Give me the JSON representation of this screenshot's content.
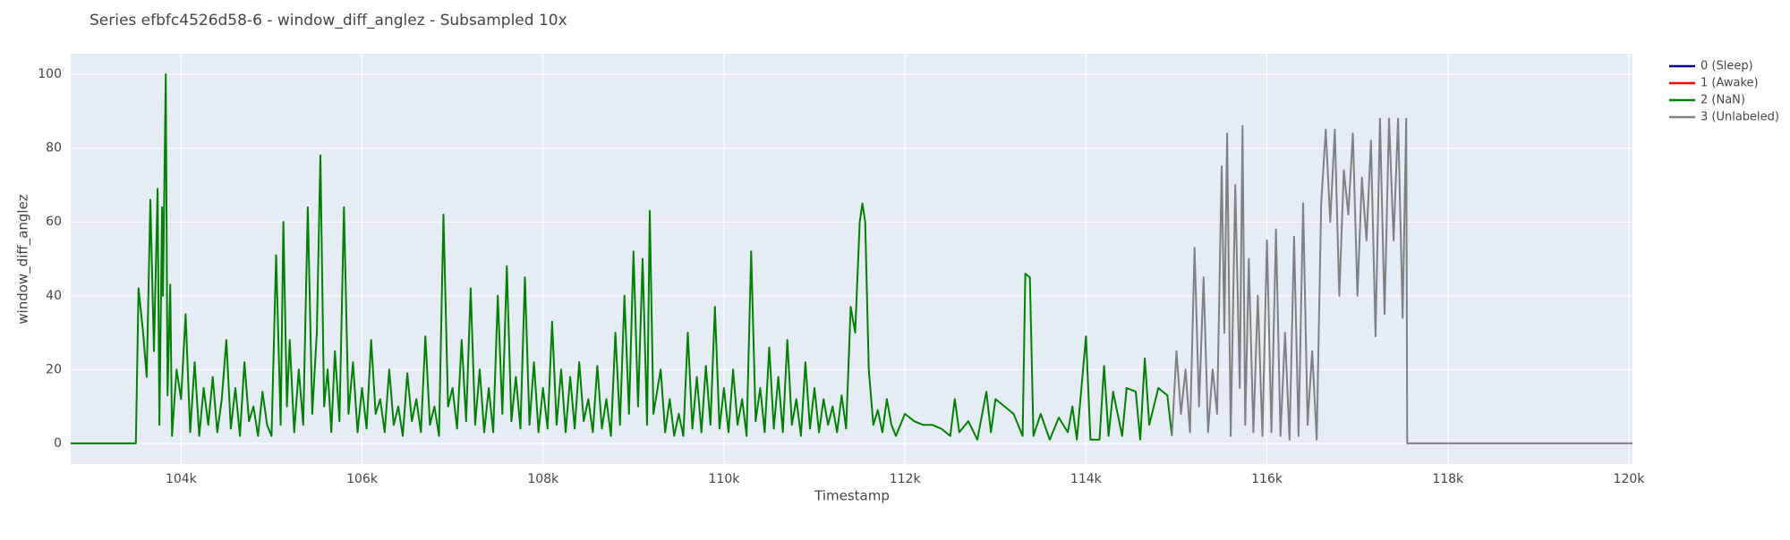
{
  "chart_data": {
    "type": "line",
    "title": "Series efbfc4526d58-6 - window_diff_anglez - Subsampled 10x",
    "x_label": "Timestamp",
    "y_label": "window_diff_anglez",
    "xlim": [
      102780,
      120040
    ],
    "xticks": [
      {
        "value": 104000,
        "label": "104k"
      },
      {
        "value": 106000,
        "label": "106k"
      },
      {
        "value": 108000,
        "label": "108k"
      },
      {
        "value": 110000,
        "label": "110k"
      },
      {
        "value": 112000,
        "label": "112k"
      },
      {
        "value": 114000,
        "label": "114k"
      },
      {
        "value": 116000,
        "label": "116k"
      },
      {
        "value": 118000,
        "label": "118k"
      },
      {
        "value": 120000,
        "label": "120k"
      }
    ],
    "ylim": [
      -5.6,
      105.6
    ],
    "yticks": [
      0,
      20,
      40,
      60,
      80,
      100
    ],
    "grid": true,
    "legend": "right",
    "series": [
      {
        "name": "0 (Sleep)",
        "color": "#00008b",
        "x": [],
        "values": []
      },
      {
        "name": "1 (Awake)",
        "color": "#ff0000",
        "x": [],
        "values": []
      },
      {
        "name": "2 (NaN)",
        "color": "#008000",
        "x": [
          102780,
          103500,
          103530,
          103580,
          103620,
          103660,
          103700,
          103740,
          103760,
          103790,
          103800,
          103830,
          103850,
          103880,
          103900,
          103950,
          104000,
          104050,
          104100,
          104150,
          104200,
          104250,
          104300,
          104350,
          104400,
          104450,
          104500,
          104550,
          104600,
          104650,
          104700,
          104750,
          104800,
          104850,
          104900,
          104950,
          105000,
          105050,
          105100,
          105130,
          105170,
          105200,
          105250,
          105300,
          105350,
          105400,
          105450,
          105500,
          105540,
          105580,
          105620,
          105660,
          105700,
          105750,
          105800,
          105850,
          105900,
          105950,
          106000,
          106050,
          106100,
          106150,
          106200,
          106250,
          106300,
          106350,
          106400,
          106450,
          106500,
          106550,
          106600,
          106650,
          106700,
          106750,
          106800,
          106850,
          106900,
          106950,
          107000,
          107050,
          107100,
          107150,
          107200,
          107250,
          107300,
          107350,
          107400,
          107450,
          107500,
          107550,
          107600,
          107650,
          107700,
          107750,
          107800,
          107850,
          107900,
          107950,
          108000,
          108050,
          108100,
          108150,
          108200,
          108250,
          108300,
          108350,
          108400,
          108450,
          108500,
          108550,
          108600,
          108650,
          108700,
          108750,
          108800,
          108850,
          108900,
          108950,
          109000,
          109050,
          109100,
          109150,
          109180,
          109220,
          109300,
          109350,
          109400,
          109450,
          109500,
          109550,
          109600,
          109650,
          109700,
          109750,
          109800,
          109850,
          109900,
          109950,
          110000,
          110050,
          110100,
          110150,
          110200,
          110250,
          110300,
          110350,
          110400,
          110450,
          110500,
          110550,
          110600,
          110650,
          110700,
          110750,
          110800,
          110850,
          110900,
          110950,
          111000,
          111050,
          111100,
          111150,
          111200,
          111250,
          111300,
          111350,
          111400,
          111450,
          111500,
          111530,
          111560,
          111600,
          111650,
          111700,
          111750,
          111800,
          111850,
          111900,
          112000,
          112100,
          112200,
          112300,
          112400,
          112500,
          112550,
          112600,
          112700,
          112800,
          112900,
          112950,
          113000,
          113100,
          113200,
          113300,
          113330,
          113380,
          113420,
          113500,
          113600,
          113700,
          113800,
          113850,
          113900,
          114000,
          114050,
          114150,
          114200,
          114250,
          114300,
          114400,
          114450,
          114550,
          114600,
          114650,
          114700,
          114800,
          114900,
          114950
        ],
        "values": [
          0,
          0,
          42,
          30,
          18,
          66,
          25,
          69,
          5,
          64,
          40,
          100,
          13,
          43,
          2,
          20,
          12,
          35,
          3,
          22,
          2,
          15,
          5,
          18,
          3,
          12,
          28,
          4,
          15,
          2,
          22,
          6,
          10,
          2,
          14,
          5,
          2,
          51,
          5,
          60,
          10,
          28,
          3,
          20,
          5,
          64,
          8,
          30,
          78,
          10,
          20,
          3,
          25,
          6,
          64,
          8,
          22,
          3,
          15,
          4,
          28,
          8,
          12,
          3,
          20,
          5,
          10,
          2,
          19,
          6,
          12,
          3,
          29,
          5,
          10,
          2,
          62,
          10,
          15,
          4,
          28,
          6,
          42,
          5,
          20,
          3,
          15,
          3,
          40,
          8,
          48,
          6,
          18,
          4,
          45,
          5,
          22,
          3,
          15,
          4,
          33,
          5,
          20,
          3,
          18,
          4,
          22,
          6,
          12,
          3,
          21,
          4,
          12,
          2,
          30,
          5,
          40,
          8,
          52,
          10,
          50,
          5,
          63,
          8,
          20,
          3,
          12,
          2,
          8,
          2,
          30,
          4,
          18,
          3,
          21,
          5,
          37,
          4,
          15,
          3,
          20,
          5,
          12,
          2,
          52,
          6,
          15,
          3,
          26,
          4,
          18,
          3,
          28,
          5,
          12,
          2,
          22,
          4,
          15,
          3,
          12,
          5,
          10,
          3,
          13,
          4,
          37,
          30,
          60,
          65,
          60,
          20,
          5,
          9,
          3,
          12,
          5,
          2,
          8,
          6,
          5,
          5,
          4,
          2,
          12,
          3,
          6,
          1,
          14,
          3,
          12,
          10,
          8,
          2,
          46,
          45,
          2,
          8,
          1,
          7,
          3,
          10,
          1,
          29,
          1,
          1,
          21,
          2,
          14,
          2,
          15,
          14,
          1,
          23,
          5,
          15,
          13,
          2
        ]
      },
      {
        "name": "3 (Unlabeled)",
        "color": "#808080",
        "x": [
          114950,
          115000,
          115050,
          115100,
          115150,
          115200,
          115250,
          115300,
          115350,
          115400,
          115450,
          115500,
          115530,
          115560,
          115600,
          115650,
          115700,
          115730,
          115760,
          115800,
          115850,
          115900,
          115950,
          116000,
          116050,
          116100,
          116150,
          116200,
          116250,
          116300,
          116350,
          116400,
          116450,
          116500,
          116550,
          116600,
          116650,
          116700,
          116750,
          116800,
          116850,
          116900,
          116950,
          117000,
          117050,
          117100,
          117150,
          117200,
          117250,
          117300,
          117350,
          117400,
          117450,
          117500,
          117540,
          117550,
          120040
        ],
        "values": [
          2,
          25,
          8,
          20,
          3,
          53,
          10,
          45,
          3,
          20,
          8,
          75,
          30,
          84,
          2,
          70,
          15,
          86,
          5,
          50,
          3,
          40,
          2,
          55,
          3,
          58,
          2,
          30,
          1,
          56,
          2,
          65,
          5,
          25,
          1,
          65,
          85,
          60,
          85,
          40,
          74,
          62,
          84,
          40,
          72,
          55,
          82,
          29,
          88,
          35,
          88,
          55,
          88,
          34,
          88,
          0,
          0
        ]
      }
    ]
  }
}
